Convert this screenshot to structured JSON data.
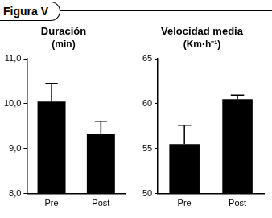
{
  "figure_label": "Figura V",
  "chart_data": [
    {
      "type": "bar",
      "title": "Duración",
      "subtitle": "(min)",
      "categories": [
        "Pre",
        "Post"
      ],
      "values": [
        10.05,
        9.33
      ],
      "errors": [
        0.4,
        0.28
      ],
      "color": "#000000",
      "ylim": [
        8,
        11
      ],
      "yticks": [
        {
          "value": 8,
          "label": "8,0"
        },
        {
          "value": 9,
          "label": "9,0"
        },
        {
          "value": 10,
          "label": "10,0"
        },
        {
          "value": 11,
          "label": "11,0"
        }
      ],
      "grid": false
    },
    {
      "type": "bar",
      "title": "Velocidad media",
      "subtitle": "(Km·h⁻¹)",
      "categories": [
        "Pre",
        "Post"
      ],
      "values": [
        55.5,
        60.5
      ],
      "errors": [
        2.1,
        0.45
      ],
      "color": "#000000",
      "ylim": [
        50,
        65
      ],
      "yticks": [
        50,
        55,
        60,
        65
      ],
      "grid": false
    }
  ]
}
